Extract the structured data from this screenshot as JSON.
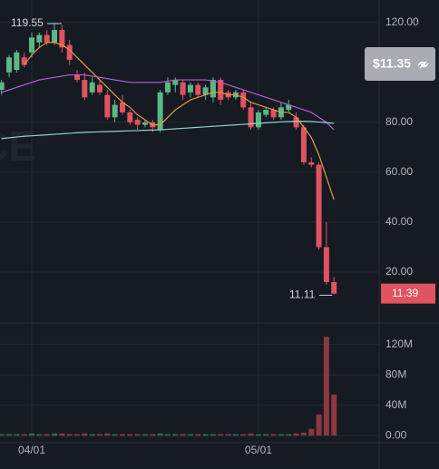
{
  "chart_data": [
    {
      "type": "candlestick",
      "watermark": "ICE",
      "price_badge": "$11.35",
      "open": [
        93,
        100,
        101,
        106,
        108,
        112,
        115,
        112,
        117,
        111,
        99,
        97,
        92,
        95,
        91,
        82,
        88,
        84,
        81,
        79,
        80,
        77,
        92,
        95,
        96,
        92,
        95,
        91,
        90,
        97,
        92,
        90,
        92,
        86,
        78,
        83,
        85,
        82,
        85,
        82,
        78,
        64,
        63,
        30,
        16
      ],
      "high": [
        97,
        107,
        109,
        108,
        116,
        116,
        117,
        119.55,
        119,
        113,
        101,
        100,
        98,
        97,
        93,
        89,
        91,
        85,
        82,
        81,
        81,
        93,
        98,
        98,
        97,
        96,
        96,
        95,
        98,
        98,
        93,
        93,
        93,
        88,
        85,
        86,
        86,
        88,
        89,
        84,
        79,
        66,
        64,
        40,
        18
      ],
      "low": [
        91,
        98,
        100,
        102,
        106,
        110,
        111,
        111,
        108,
        103,
        96,
        89,
        91,
        91,
        81,
        80,
        83,
        79,
        77,
        78,
        76,
        76,
        91,
        92,
        89,
        90,
        90,
        89,
        88,
        87,
        89,
        89,
        85,
        77,
        77,
        82,
        81,
        81,
        84,
        77,
        63,
        62,
        29,
        15,
        11.11
      ],
      "close": [
        96,
        106,
        108,
        103,
        114,
        115,
        112,
        117,
        110,
        105,
        97,
        90,
        96,
        92,
        82,
        87,
        84,
        80,
        79,
        80,
        78,
        92,
        96,
        97,
        91,
        95,
        91,
        94,
        97,
        89,
        90,
        92,
        86,
        78,
        84,
        85,
        82,
        86,
        87,
        78,
        64,
        63,
        30,
        16,
        11.39
      ],
      "up_color": "#5ab883",
      "down_color": "#e0535f",
      "series": [
        {
          "color": "#e09a3e",
          "values": [
            null,
            null,
            null,
            103,
            107,
            110,
            112,
            112,
            111,
            109,
            106,
            103,
            100,
            97,
            94,
            91,
            88,
            86,
            83,
            81,
            79,
            79,
            82,
            85,
            87,
            89,
            90,
            91,
            92,
            92,
            91,
            91,
            90,
            88,
            87,
            86,
            85,
            84,
            84,
            82,
            78,
            74,
            67,
            58,
            49
          ]
        },
        {
          "color": "#b65fd6",
          "values": [
            92,
            93,
            94,
            95,
            96,
            97,
            97.5,
            98,
            98.5,
            99,
            99,
            99,
            98.5,
            98,
            97.5,
            97,
            96.5,
            96,
            96,
            96,
            96,
            96,
            96.5,
            97,
            97,
            97,
            97,
            97,
            96.5,
            96,
            95,
            94,
            93,
            92,
            91,
            90,
            89,
            88,
            87,
            86,
            85,
            84,
            82,
            80,
            77
          ]
        },
        {
          "color": "#8fd3d0",
          "values": [
            73.5,
            73.8,
            74.1,
            74.4,
            74.6,
            74.8,
            75,
            75.2,
            75.4,
            75.6,
            75.8,
            76,
            76.1,
            76.2,
            76.3,
            76.4,
            76.5,
            76.6,
            76.7,
            76.8,
            76.9,
            77,
            77.2,
            77.4,
            77.6,
            77.8,
            78,
            78.2,
            78.4,
            78.6,
            78.8,
            79,
            79.2,
            79.4,
            79.6,
            79.8,
            80,
            80.2,
            80.3,
            80.4,
            80.4,
            80.3,
            80.1,
            79.9,
            79.6
          ]
        }
      ],
      "ylim": [
        0,
        129
      ],
      "yticks": [
        {
          "value": 20,
          "label": "20.00"
        },
        {
          "value": 40,
          "label": "40.00"
        },
        {
          "value": 60,
          "label": "60.00"
        },
        {
          "value": 80,
          "label": "80.00"
        },
        {
          "value": 120,
          "label": "120.00"
        }
      ],
      "grid": true
    },
    {
      "type": "bar",
      "categories": [
        null,
        null,
        null,
        null,
        "04/01",
        null,
        null,
        null,
        null,
        null,
        null,
        null,
        null,
        null,
        null,
        null,
        null,
        null,
        null,
        null,
        null,
        null,
        null,
        null,
        null,
        null,
        null,
        null,
        null,
        null,
        null,
        null,
        null,
        null,
        "05/01",
        null,
        null,
        null,
        null,
        null,
        null,
        null,
        null,
        null,
        null
      ],
      "values": [
        2,
        2,
        2,
        2,
        3,
        2,
        2,
        3,
        3,
        2,
        2,
        3,
        2,
        2,
        3,
        2,
        2,
        2,
        2,
        2,
        2,
        3,
        2,
        2,
        2,
        2,
        2,
        2,
        2,
        2,
        2,
        2,
        2,
        3,
        2,
        2,
        2,
        2,
        2,
        3,
        4,
        9,
        28,
        130,
        54
      ],
      "up_color": "#2f6e4c",
      "down_color": "#8b3840",
      "ylim": [
        -8,
        147
      ],
      "yticks": [
        {
          "value": 0,
          "label": "0.00"
        },
        {
          "value": 40,
          "label": "40M"
        },
        {
          "value": 80,
          "label": "80M"
        },
        {
          "value": 120,
          "label": "120M"
        }
      ],
      "grid": true
    }
  ]
}
